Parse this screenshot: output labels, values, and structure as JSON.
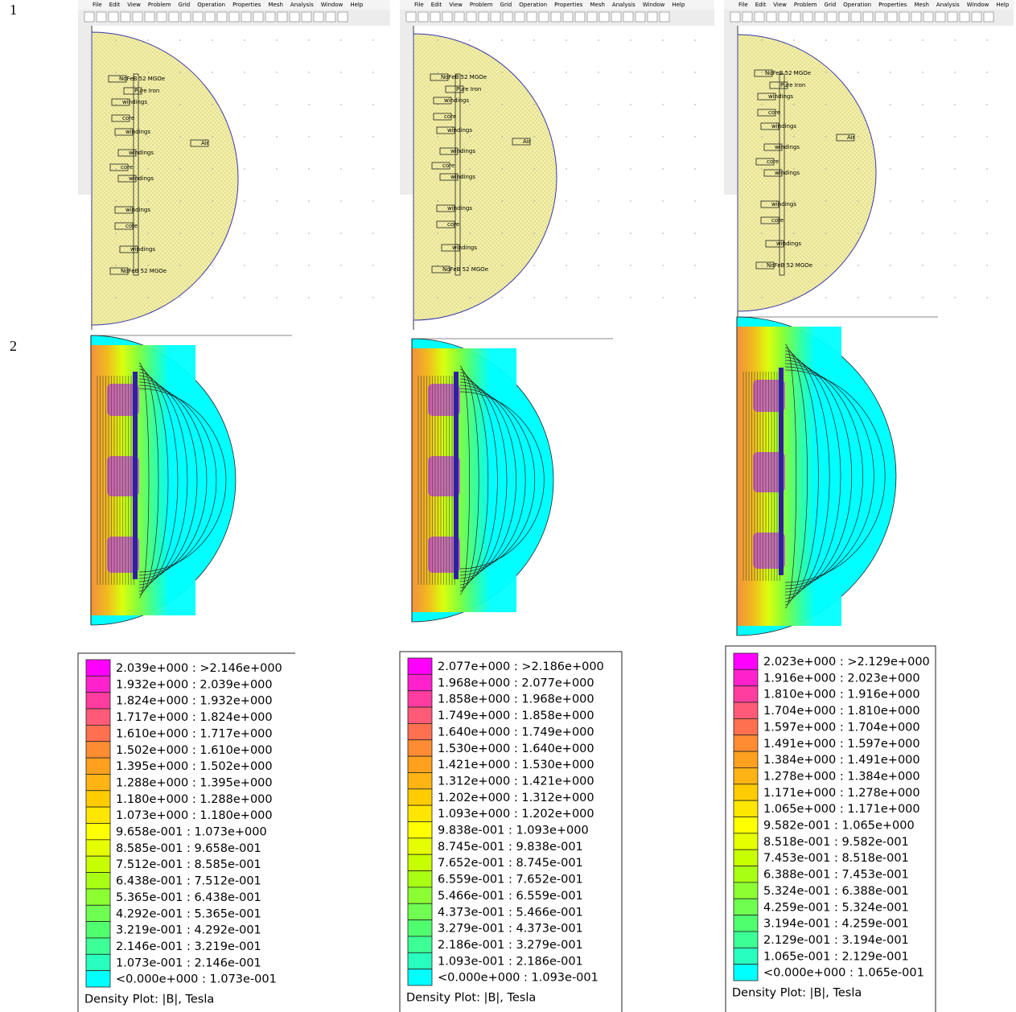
{
  "row_labels": [
    "1",
    "2"
  ],
  "panels": [
    {
      "menu": [
        "File",
        "Edit",
        "View",
        "Problem",
        "Grid",
        "Operation",
        "Properties",
        "Mesh",
        "Analysis",
        "Window",
        "Help"
      ],
      "labels": [
        "NdFeB 52 MGOe",
        "Pure Iron",
        "windings",
        "core",
        "windings",
        "Air",
        "windings",
        "core",
        "windings",
        "windings",
        "core",
        "windings",
        "NdFeB 52 MGOe"
      ]
    },
    {
      "menu": [
        "File",
        "Edit",
        "View",
        "Problem",
        "Grid",
        "Operation",
        "Properties",
        "Mesh",
        "Analysis",
        "Window",
        "Help"
      ],
      "labels": [
        "NdFeB 52 MGOe",
        "Pure Iron",
        "windings",
        "core",
        "windings",
        "Air",
        "windings",
        "core",
        "windings",
        "windings",
        "core",
        "windings",
        "NdFeB 52 MGOe"
      ]
    },
    {
      "menu": [
        "File",
        "Edit",
        "View",
        "Problem",
        "Grid",
        "Operation",
        "Properties",
        "Mesh",
        "Analysis",
        "Window",
        "Help"
      ],
      "labels": [
        "NdFeB 52 MGOe",
        "Pure Iron",
        "windings",
        "core",
        "windings",
        "Air",
        "windings",
        "core",
        "windings",
        "windings",
        "core",
        "windings",
        "NdFeB 52 MGOe"
      ]
    }
  ],
  "legend_colors": [
    "#ff00ff",
    "#ff22cc",
    "#ff3ca0",
    "#ff5a78",
    "#ff7050",
    "#ff8c32",
    "#ffa01e",
    "#ffb414",
    "#ffcc00",
    "#ffe600",
    "#ffff00",
    "#e6ff00",
    "#c8ff00",
    "#a8ff14",
    "#8cff32",
    "#6eff50",
    "#50ff6e",
    "#3cff96",
    "#28ffbe",
    "#00ffff"
  ],
  "legends": [
    {
      "entries": [
        "2.039e+000 : >2.146e+000",
        "1.932e+000 : 2.039e+000",
        "1.824e+000 : 1.932e+000",
        "1.717e+000 : 1.824e+000",
        "1.610e+000 : 1.717e+000",
        "1.502e+000 : 1.610e+000",
        "1.395e+000 : 1.502e+000",
        "1.288e+000 : 1.395e+000",
        "1.180e+000 : 1.288e+000",
        "1.073e+000 : 1.180e+000",
        "9.658e-001 : 1.073e+000",
        "8.585e-001 : 9.658e-001",
        "7.512e-001 : 8.585e-001",
        "6.438e-001 : 7.512e-001",
        "5.365e-001 : 6.438e-001",
        "4.292e-001 : 5.365e-001",
        "3.219e-001 : 4.292e-001",
        "2.146e-001 : 3.219e-001",
        "1.073e-001 : 2.146e-001",
        "<0.000e+000 : 1.073e-001"
      ],
      "title": "Density Plot: |B|, Tesla"
    },
    {
      "entries": [
        "2.077e+000 : >2.186e+000",
        "1.968e+000 : 2.077e+000",
        "1.858e+000 : 1.968e+000",
        "1.749e+000 : 1.858e+000",
        "1.640e+000 : 1.749e+000",
        "1.530e+000 : 1.640e+000",
        "1.421e+000 : 1.530e+000",
        "1.312e+000 : 1.421e+000",
        "1.202e+000 : 1.312e+000",
        "1.093e+000 : 1.202e+000",
        "9.838e-001 : 1.093e+000",
        "8.745e-001 : 9.838e-001",
        "7.652e-001 : 8.745e-001",
        "6.559e-001 : 7.652e-001",
        "5.466e-001 : 6.559e-001",
        "4.373e-001 : 5.466e-001",
        "3.279e-001 : 4.373e-001",
        "2.186e-001 : 3.279e-001",
        "1.093e-001 : 2.186e-001",
        "<0.000e+000 : 1.093e-001"
      ],
      "title": "Density Plot: |B|, Tesla"
    },
    {
      "entries": [
        "2.023e+000 : >2.129e+000",
        "1.916e+000 : 2.023e+000",
        "1.810e+000 : 1.916e+000",
        "1.704e+000 : 1.810e+000",
        "1.597e+000 : 1.704e+000",
        "1.491e+000 : 1.597e+000",
        "1.384e+000 : 1.491e+000",
        "1.278e+000 : 1.384e+000",
        "1.171e+000 : 1.278e+000",
        "1.065e+000 : 1.171e+000",
        "9.582e-001 : 1.065e+000",
        "8.518e-001 : 9.582e-001",
        "7.453e-001 : 8.518e-001",
        "6.388e-001 : 7.453e-001",
        "5.324e-001 : 6.388e-001",
        "4.259e-001 : 5.324e-001",
        "3.194e-001 : 4.259e-001",
        "2.129e-001 : 3.194e-001",
        "1.065e-001 : 2.129e-001",
        "<0.000e+000 : 1.065e-001"
      ],
      "title": "Density Plot: |B|, Tesla"
    }
  ]
}
